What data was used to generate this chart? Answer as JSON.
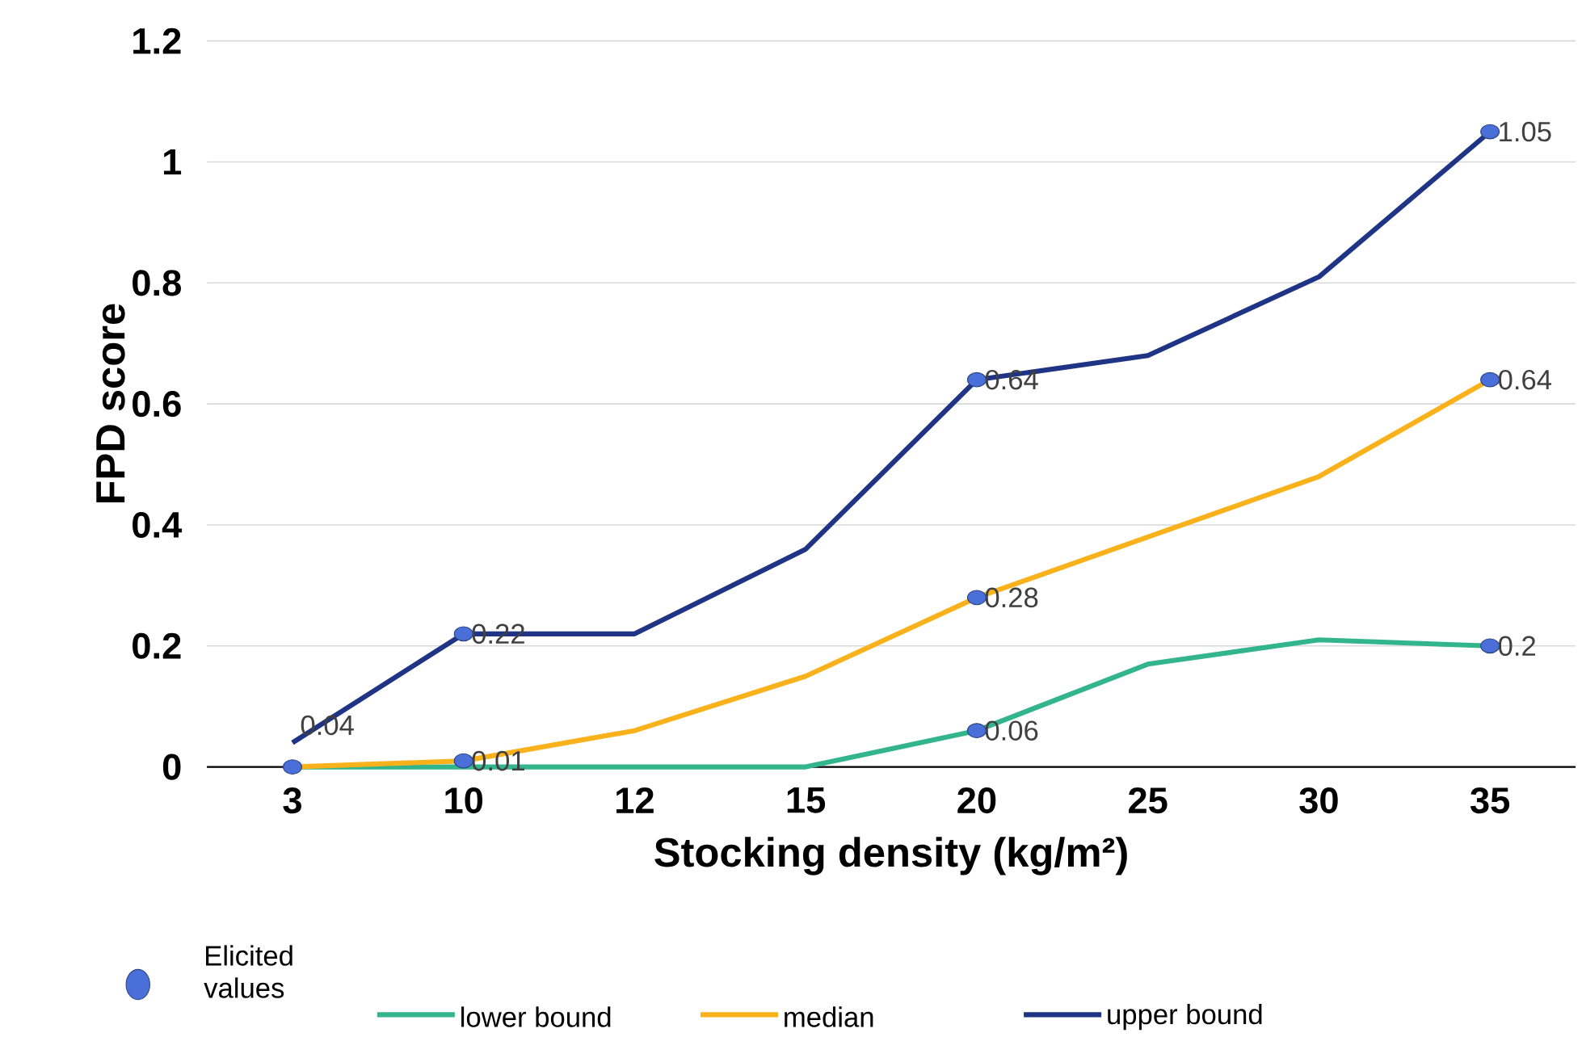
{
  "chart_data": {
    "type": "line",
    "xlabel": "Stocking density (kg/m²)",
    "ylabel": "FPD score",
    "categories": [
      "3",
      "10",
      "12",
      "15",
      "20",
      "25",
      "30",
      "35"
    ],
    "series": [
      {
        "name": "lower bound",
        "color": "#33b58c",
        "values": [
          0,
          0,
          0,
          0,
          0.06,
          0.17,
          0.21,
          0.2
        ]
      },
      {
        "name": "median",
        "color": "#f9b21b",
        "values": [
          0,
          0.01,
          0.06,
          0.15,
          0.28,
          0.38,
          0.48,
          0.64
        ]
      },
      {
        "name": "upper bound",
        "color": "#1f3485",
        "values": [
          0.04,
          0.22,
          0.22,
          0.36,
          0.64,
          0.68,
          0.81,
          1.05
        ]
      },
      {
        "name": "Elicited values",
        "type": "scatter",
        "color": "#4a6fd8",
        "marker": "circle",
        "x": [
          "3",
          "10",
          "10",
          "20",
          "20",
          "20",
          "35",
          "35",
          "35"
        ],
        "values": [
          0,
          0.22,
          0.01,
          0.64,
          0.28,
          0.06,
          1.05,
          0.64,
          0.2
        ],
        "value_labels": [
          null,
          "0.22",
          "0.01",
          "0.64",
          "0.28",
          "0.06",
          "1.05",
          "0.64",
          "0.2"
        ]
      }
    ],
    "annotations": [
      {
        "text": "0.04",
        "x": "3",
        "y": 0.04
      }
    ],
    "ylim": [
      0,
      1.2
    ],
    "yticks": [
      0,
      0.2,
      0.4,
      0.6,
      0.8,
      1,
      1.2
    ],
    "grid": "y",
    "legend": "bottom"
  }
}
